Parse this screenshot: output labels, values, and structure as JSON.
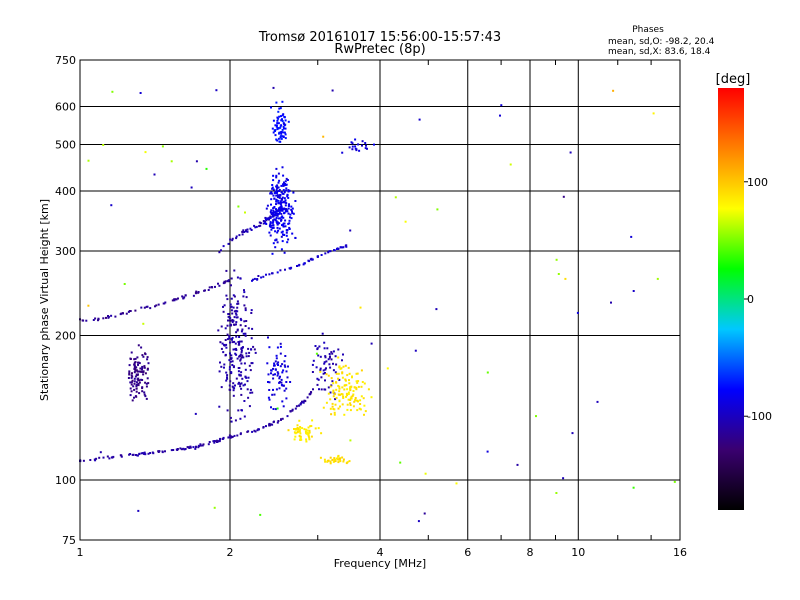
{
  "chart_data": {
    "type": "scatter",
    "title": "Tromsø 20161017 15:56:00-15:57:43",
    "subtitle": "RwPretec (8p)",
    "xlabel": "Frequency [MHz]",
    "ylabel": "Stationary phase Virtual Height [km]",
    "x_scale": "log",
    "y_scale": "log",
    "xlim": [
      1,
      16
    ],
    "ylim": [
      75,
      750
    ],
    "x_ticks": [
      1,
      2,
      4,
      6,
      8,
      10,
      16
    ],
    "y_ticks": [
      75,
      100,
      200,
      300,
      400,
      500,
      600,
      750
    ],
    "grid": true,
    "stats": {
      "heading": "Phases",
      "line_o": "mean, sd,O: -98.2, 20.4",
      "line_x": "mean, sd,X: 83.6, 18.4"
    },
    "colorbar": {
      "label": "[deg]",
      "range": [
        -180,
        180
      ],
      "ticks": [
        100,
        0,
        -100
      ],
      "colormap": [
        "#000000",
        "#3a0070",
        "#0000ff",
        "#00c8ff",
        "#00ff00",
        "#ffff00",
        "#ff8000",
        "#ff0000"
      ]
    },
    "clusters": [
      {
        "kind": "trace",
        "points": [
          [
            1.0,
            110
          ],
          [
            1.1,
            111
          ],
          [
            1.2,
            112
          ],
          [
            1.3,
            113
          ],
          [
            1.4,
            114
          ],
          [
            1.5,
            115
          ],
          [
            1.6,
            116
          ],
          [
            1.7,
            117
          ],
          [
            1.8,
            119
          ],
          [
            1.9,
            121
          ],
          [
            2.0,
            123
          ],
          [
            2.2,
            126
          ],
          [
            2.4,
            130
          ],
          [
            2.6,
            136
          ],
          [
            2.8,
            145
          ],
          [
            2.95,
            155
          ]
        ],
        "phase": -110,
        "n": 150,
        "jx": 0.008,
        "jy": 0.01
      },
      {
        "kind": "trace",
        "points": [
          [
            1.0,
            215
          ],
          [
            1.1,
            217
          ],
          [
            1.2,
            221
          ],
          [
            1.3,
            226
          ],
          [
            1.45,
            232
          ],
          [
            1.6,
            240
          ],
          [
            1.75,
            247
          ],
          [
            1.9,
            255
          ],
          [
            2.0,
            262
          ]
        ],
        "phase": -115,
        "n": 70,
        "jx": 0.008,
        "jy": 0.01
      },
      {
        "kind": "trace",
        "points": [
          [
            2.2,
            260
          ],
          [
            2.4,
            268
          ],
          [
            2.6,
            275
          ],
          [
            2.8,
            282
          ],
          [
            3.0,
            292
          ],
          [
            3.2,
            300
          ],
          [
            3.5,
            310
          ]
        ],
        "phase": -95,
        "n": 50,
        "jx": 0.008,
        "jy": 0.01
      },
      {
        "kind": "trace",
        "points": [
          [
            1.85,
            290
          ],
          [
            2.0,
            315
          ],
          [
            2.15,
            330
          ],
          [
            2.3,
            340
          ],
          [
            2.45,
            360
          ]
        ],
        "phase": -105,
        "n": 40,
        "jx": 0.012,
        "jy": 0.015
      },
      {
        "kind": "blob",
        "x": [
          1.22,
          1.4
        ],
        "y": [
          140,
          195
        ],
        "phase": -120,
        "n": 110
      },
      {
        "kind": "blob",
        "x": [
          1.85,
          2.3
        ],
        "y": [
          120,
          300
        ],
        "phase": -108,
        "n": 230
      },
      {
        "kind": "blob",
        "x": [
          2.3,
          2.75
        ],
        "y": [
          290,
          470
        ],
        "phase": -85,
        "n": 260
      },
      {
        "kind": "blob",
        "x": [
          2.4,
          2.65
        ],
        "y": [
          470,
          640
        ],
        "phase": -75,
        "n": 70
      },
      {
        "kind": "blob",
        "x": [
          2.3,
          2.7
        ],
        "y": [
          130,
          210
        ],
        "phase": -90,
        "n": 70
      },
      {
        "kind": "blob",
        "x": [
          2.8,
          3.5
        ],
        "y": [
          140,
          210
        ],
        "phase": -105,
        "n": 60
      },
      {
        "kind": "blob",
        "x": [
          2.55,
          3.1
        ],
        "y": [
          118,
          135
        ],
        "phase": 85,
        "n": 55
      },
      {
        "kind": "blob",
        "x": [
          2.95,
          4.0
        ],
        "y": [
          125,
          185
        ],
        "phase": 88,
        "n": 130
      },
      {
        "kind": "blob",
        "x": [
          3.0,
          3.6
        ],
        "y": [
          107,
          113
        ],
        "phase": 90,
        "n": 35
      },
      {
        "kind": "blob",
        "x": [
          3.3,
          4.0
        ],
        "y": [
          470,
          520
        ],
        "phase": -90,
        "n": 20
      },
      {
        "kind": "scatter",
        "x": [
          1.0,
          16.0
        ],
        "y": [
          80,
          700
        ],
        "phase": 20,
        "n": 70
      }
    ]
  }
}
